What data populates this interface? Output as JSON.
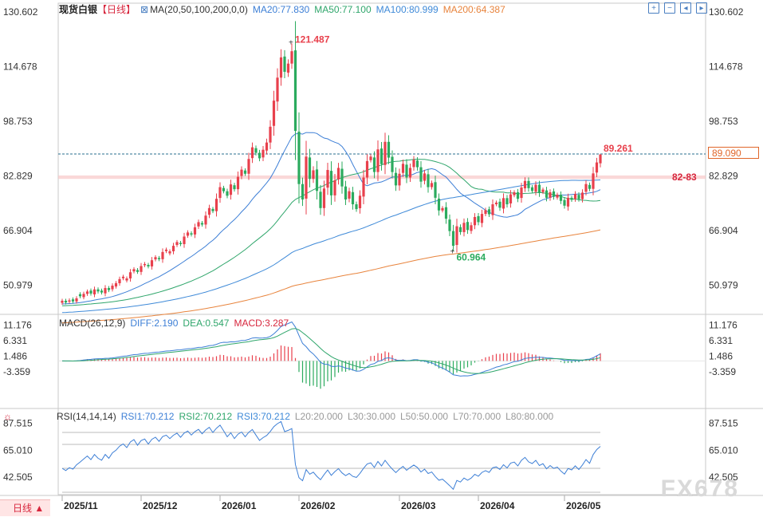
{
  "header": {
    "title": "现货白银",
    "period": "【日线】",
    "ma_label": "MA(20,50,100,200,0,0)",
    "ma20": "MA20:77.830",
    "ma50": "MA50:77.100",
    "ma100": "MA100:80.999",
    "ma200": "MA200:64.387"
  },
  "macd_header": {
    "label": "MACD(26,12,9)",
    "diff": "DIFF:2.190",
    "dea": "DEA:0.547",
    "macd": "MACD:3.287"
  },
  "rsi_header": {
    "label": "RSI(14,14,14)",
    "rsi1": "RSI1:70.212",
    "rsi2": "RSI2:70.212",
    "rsi3": "RSI3:70.212",
    "l20": "L20:20.000",
    "l30": "L30:30.000",
    "l50": "L50:50.000",
    "l70": "L70:70.000",
    "l80": "L80:80.000"
  },
  "current_price": "89.090",
  "period_button": "日线 ▲",
  "watermark": "FX678",
  "colors": {
    "up": "#e8404c",
    "down": "#2bab5e",
    "ma20": "#3d7fd6",
    "ma50": "#2fa66b",
    "ma100": "#3f8ad8",
    "ma200": "#e8843d",
    "diff": "#3d7fd6",
    "dea": "#2fa66b",
    "zone": "#f8c8c8",
    "price_line": "#2a6f8f"
  },
  "chart_data": [
    {
      "type": "candlestick",
      "title": "现货白银",
      "x_ticks": [
        "2025/11",
        "2025/12",
        "2026/01",
        "2026/02",
        "2026/03",
        "2026/04",
        "2026/05"
      ],
      "y_ticks": [
        "130.602",
        "114.678",
        "98.753",
        "82.829",
        "66.904",
        "50.979"
      ],
      "ylim": [
        43.0,
        131.8
      ],
      "annotations": [
        {
          "text": "121.487",
          "value": 121.487
        },
        {
          "text": "60.964",
          "value": 60.964
        },
        {
          "text": "89.261",
          "value": 89.261
        },
        {
          "text": "82-83",
          "value": 82.5
        }
      ],
      "zone": [
        82.0,
        83.0
      ],
      "current_price": 89.09,
      "closes": [
        46.5,
        46.0,
        46.6,
        46.3,
        47.2,
        47.8,
        48.5,
        49.2,
        48.6,
        49.8,
        49.2,
        48.9,
        50.2,
        49.6,
        50.9,
        51.6,
        52.8,
        53.5,
        53.0,
        54.8,
        55.7,
        54.9,
        56.6,
        57.2,
        56.5,
        58.3,
        59.2,
        58.6,
        60.7,
        61.4,
        60.9,
        62.5,
        63.6,
        63.0,
        65.2,
        66.4,
        65.8,
        67.9,
        69.4,
        68.7,
        71.3,
        73.5,
        72.6,
        76.2,
        79.6,
        78.4,
        77.1,
        80.4,
        79.0,
        82.6,
        84.7,
        83.5,
        87.8,
        91.2,
        89.6,
        88.0,
        90.5,
        92.6,
        97.2,
        104.8,
        111.5,
        117.4,
        113.2,
        115.6,
        119.2,
        96.0,
        80.5,
        76.0,
        88.5,
        82.0,
        84.5,
        78.5,
        73.5,
        79.2,
        84.6,
        77.2,
        81.6,
        85.2,
        79.8,
        76.0,
        78.4,
        74.6,
        73.2,
        77.1,
        82.4,
        87.2,
        88.5,
        84.0,
        90.6,
        86.3,
        92.8,
        88.2,
        84.0,
        80.1,
        83.5,
        86.4,
        82.4,
        85.2,
        87.6,
        85.4,
        81.2,
        83.6,
        79.6,
        80.8,
        76.5,
        72.8,
        73.5,
        70.4,
        66.8,
        62.5,
        68.2,
        66.5,
        69.2,
        67.1,
        68.5,
        70.9,
        69.4,
        71.8,
        72.9,
        71.7,
        74.6,
        75.1,
        73.6,
        76.4,
        74.6,
        77.5,
        78.1,
        76.2,
        79.5,
        81.4,
        79.3,
        78.5,
        80.3,
        77.9,
        78.9,
        76.5,
        78.1,
        76.8,
        77.4,
        75.6,
        74.2,
        76.5,
        75.9,
        77.6,
        76.1,
        78.0,
        80.5,
        79.1,
        83.6,
        86.8,
        89.09
      ]
    },
    {
      "type": "macd",
      "title": "MACD(26,12,9)",
      "y_ticks": [
        "11.176",
        "6.331",
        "1.486",
        "-3.359"
      ],
      "ylim": [
        -13.8,
        13.0
      ]
    },
    {
      "type": "rsi",
      "title": "RSI(14,14,14)",
      "y_ticks": [
        "87.515",
        "65.010",
        "42.505"
      ],
      "ylim": [
        28.0,
        96.0
      ],
      "guide_levels": [
        30,
        50,
        70,
        80
      ]
    }
  ]
}
